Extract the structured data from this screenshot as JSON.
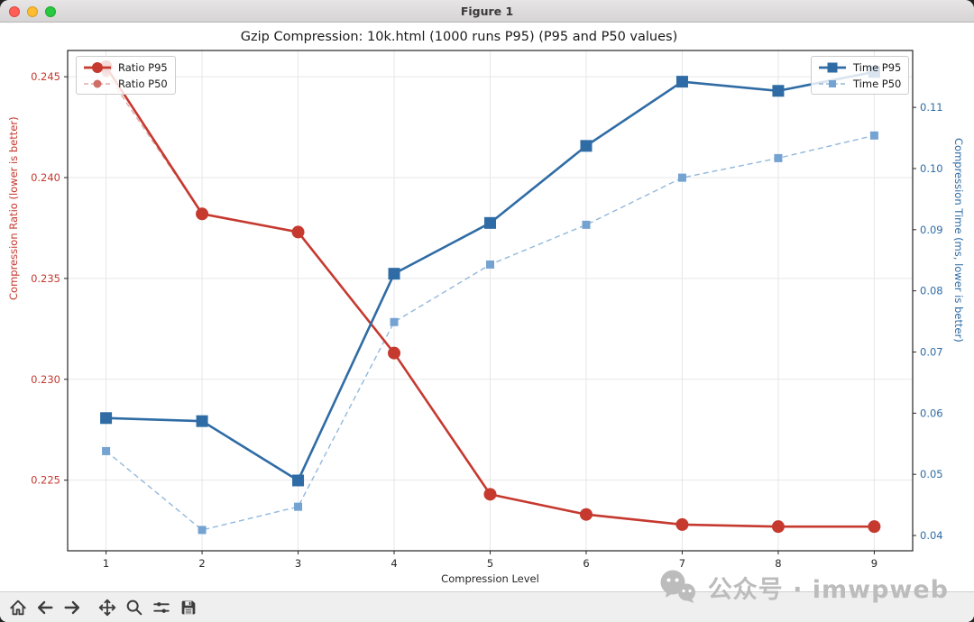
{
  "window": {
    "title": "Figure 1",
    "controls": [
      "close",
      "minimize",
      "fullscreen"
    ]
  },
  "chart_data": {
    "type": "line",
    "title": "Gzip Compression: 10k.html (1000 runs P95) (P95 and P50 values)",
    "xlabel": "Compression Level",
    "x": [
      1,
      2,
      3,
      4,
      5,
      6,
      7,
      8,
      9
    ],
    "xticks": [
      1,
      2,
      3,
      4,
      5,
      6,
      7,
      8,
      9
    ],
    "xtick_labels": [
      "1",
      "2",
      "3",
      "4",
      "5",
      "6",
      "7",
      "8",
      "9"
    ],
    "xlim": [
      0.6,
      9.4
    ],
    "grid": true,
    "axes": {
      "left": {
        "label": "Compression Ratio (lower is better)",
        "color": "#c5392f",
        "ticks": [
          0.225,
          0.23,
          0.235,
          0.24,
          0.245
        ],
        "tick_labels": [
          "0.225",
          "0.230",
          "0.235",
          "0.240",
          "0.245"
        ],
        "lim": [
          0.2215,
          0.2463
        ]
      },
      "right": {
        "label": "Compression Time (ms, lower is better)",
        "color": "#2f6ca5",
        "ticks": [
          0.04,
          0.05,
          0.06,
          0.07,
          0.08,
          0.09,
          0.1,
          0.11
        ],
        "tick_labels": [
          "0.04",
          "0.05",
          "0.06",
          "0.07",
          "0.08",
          "0.09",
          "0.10",
          "0.11"
        ],
        "lim": [
          0.0375,
          0.1193
        ]
      }
    },
    "series": [
      {
        "name": "Ratio P95",
        "axis": "left",
        "style": "solid",
        "marker": "circle",
        "color": "#c5392f",
        "marker_color": "#c5392f",
        "values": [
          0.2455,
          0.2382,
          0.2373,
          0.2313,
          0.2243,
          0.2233,
          0.2228,
          0.2227,
          0.2227
        ]
      },
      {
        "name": "Ratio P50",
        "axis": "left",
        "style": "dashed",
        "marker": "circle",
        "color": "#e3aaa5",
        "marker_color": "#cf6f67",
        "values": [
          0.2452,
          0.2382,
          0.2373,
          0.2313,
          0.2243,
          0.2233,
          0.2228,
          0.2227,
          0.2227
        ]
      },
      {
        "name": "Time P95",
        "axis": "right",
        "style": "solid",
        "marker": "square",
        "color": "#2f6ca5",
        "marker_color": "#2f6ca5",
        "values": [
          0.0592,
          0.0587,
          0.049,
          0.0828,
          0.0911,
          0.1037,
          0.1142,
          0.1127,
          0.1158
        ]
      },
      {
        "name": "Time P50",
        "axis": "right",
        "style": "dashed",
        "marker": "square",
        "color": "#92b8dc",
        "marker_color": "#74a3d2",
        "values": [
          0.0538,
          0.0409,
          0.0447,
          0.0749,
          0.0843,
          0.0908,
          0.0985,
          0.1017,
          0.1054
        ]
      }
    ],
    "legends": {
      "left": [
        "Ratio P95",
        "Ratio P50"
      ],
      "right": [
        "Time P95",
        "Time P50"
      ]
    },
    "legend_position": [
      "upper left",
      "upper right"
    ]
  },
  "toolbar": {
    "icons": [
      "home",
      "back",
      "forward",
      "pan",
      "zoom",
      "subplots",
      "save"
    ]
  },
  "watermark": {
    "text": "公众号 · imwpweb",
    "logo": "wechat-logo",
    "color": "#bcbcbc"
  }
}
